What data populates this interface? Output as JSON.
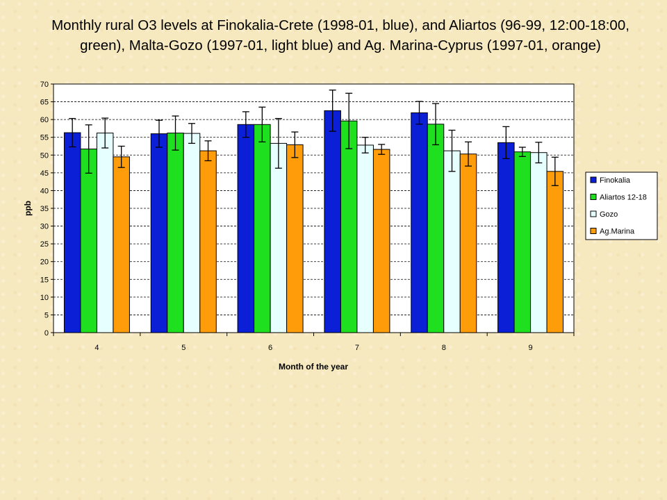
{
  "title": {
    "line1": "Monthly rural O3 levels at Finokalia-Crete (1998-01, blue), and Aliartos (96-99, 12:00-18:00,",
    "line2": "green), Malta-Gozo (1997-01, light blue) and Ag. Marina-Cyprus (1997-01, orange)"
  },
  "chart_data": {
    "type": "bar",
    "xlabel": "Month of the year",
    "ylabel": "ppb",
    "ylim": [
      0,
      70
    ],
    "ytick_step": 5,
    "grid": true,
    "legend_position": "right",
    "categories": [
      "4",
      "5",
      "6",
      "7",
      "8",
      "9"
    ],
    "series": [
      {
        "name": "Finokalia",
        "color": "#0a1fd6",
        "values": [
          56.3,
          56.0,
          58.6,
          62.5,
          61.9,
          53.5
        ],
        "error": [
          4.0,
          3.8,
          3.6,
          5.8,
          3.2,
          4.5
        ]
      },
      {
        "name": "Aliartos 12-18",
        "color": "#1fe01f",
        "values": [
          51.7,
          56.2,
          58.6,
          59.6,
          58.7,
          50.9
        ],
        "error": [
          6.8,
          4.8,
          4.9,
          7.8,
          5.8,
          1.3
        ]
      },
      {
        "name": "Gozo",
        "color": "#e6ffff",
        "values": [
          56.2,
          56.1,
          53.3,
          52.8,
          51.2,
          50.7
        ],
        "error": [
          4.2,
          2.8,
          7.0,
          2.2,
          5.8,
          2.9
        ]
      },
      {
        "name": "Ag.Marina",
        "color": "#ff9c0a",
        "values": [
          49.5,
          51.2,
          52.9,
          51.6,
          50.3,
          45.4
        ],
        "error": [
          3.0,
          2.8,
          3.6,
          1.4,
          3.4,
          4.0
        ]
      }
    ]
  }
}
